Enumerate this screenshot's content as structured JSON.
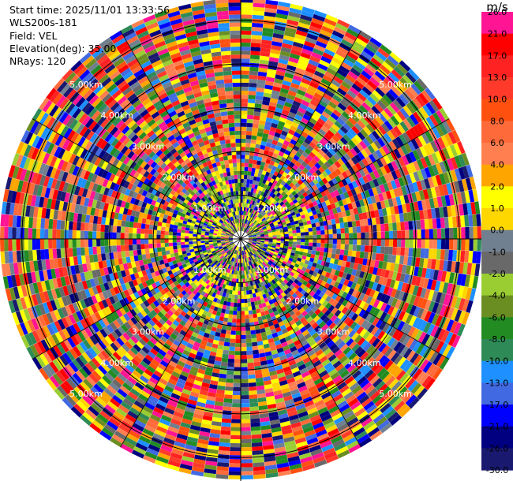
{
  "header": {
    "start_time": "Start time: 2025/11/01 13:33:56",
    "instrument": "WLS200s-181",
    "field": "Field: VEL",
    "elevation": "Elevation(deg): 35.00",
    "nrays": "NRays: 120"
  },
  "chart_data": {
    "type": "heatmap",
    "projection": "polar-ppi",
    "field": "VEL",
    "elevation_deg": 35.0,
    "n_rays": 120,
    "max_range_km": 5.5,
    "range_ring_labels": [
      "1.00km",
      "2.00km",
      "3.00km",
      "4.00km",
      "5.00km"
    ],
    "colorbar": {
      "units": "m/s",
      "ticks": [
        "26.0",
        "21.0",
        "17.0",
        "13.0",
        "10.0",
        "8.0",
        "6.0",
        "4.0",
        "2.0",
        "1.0",
        "0.0",
        "-1.0",
        "-2.0",
        "-4.0",
        "-6.0",
        "-8.0",
        "-10.0",
        "-13.0",
        "-17.0",
        "-21.0",
        "-26.0",
        "-30.0"
      ],
      "colors": [
        "#ff1493",
        "#ff0000",
        "#ff2222",
        "#ff3a2a",
        "#ff5010",
        "#ff6a3a",
        "#ff7f50",
        "#ffa500",
        "#ffff00",
        "#ffd700",
        "#708090",
        "#696969",
        "#9acd32",
        "#6b8e23",
        "#228b22",
        "#2e8b57",
        "#1e90ff",
        "#4169e1",
        "#0000ff",
        "#000080",
        "#191970"
      ]
    },
    "grid": true
  }
}
